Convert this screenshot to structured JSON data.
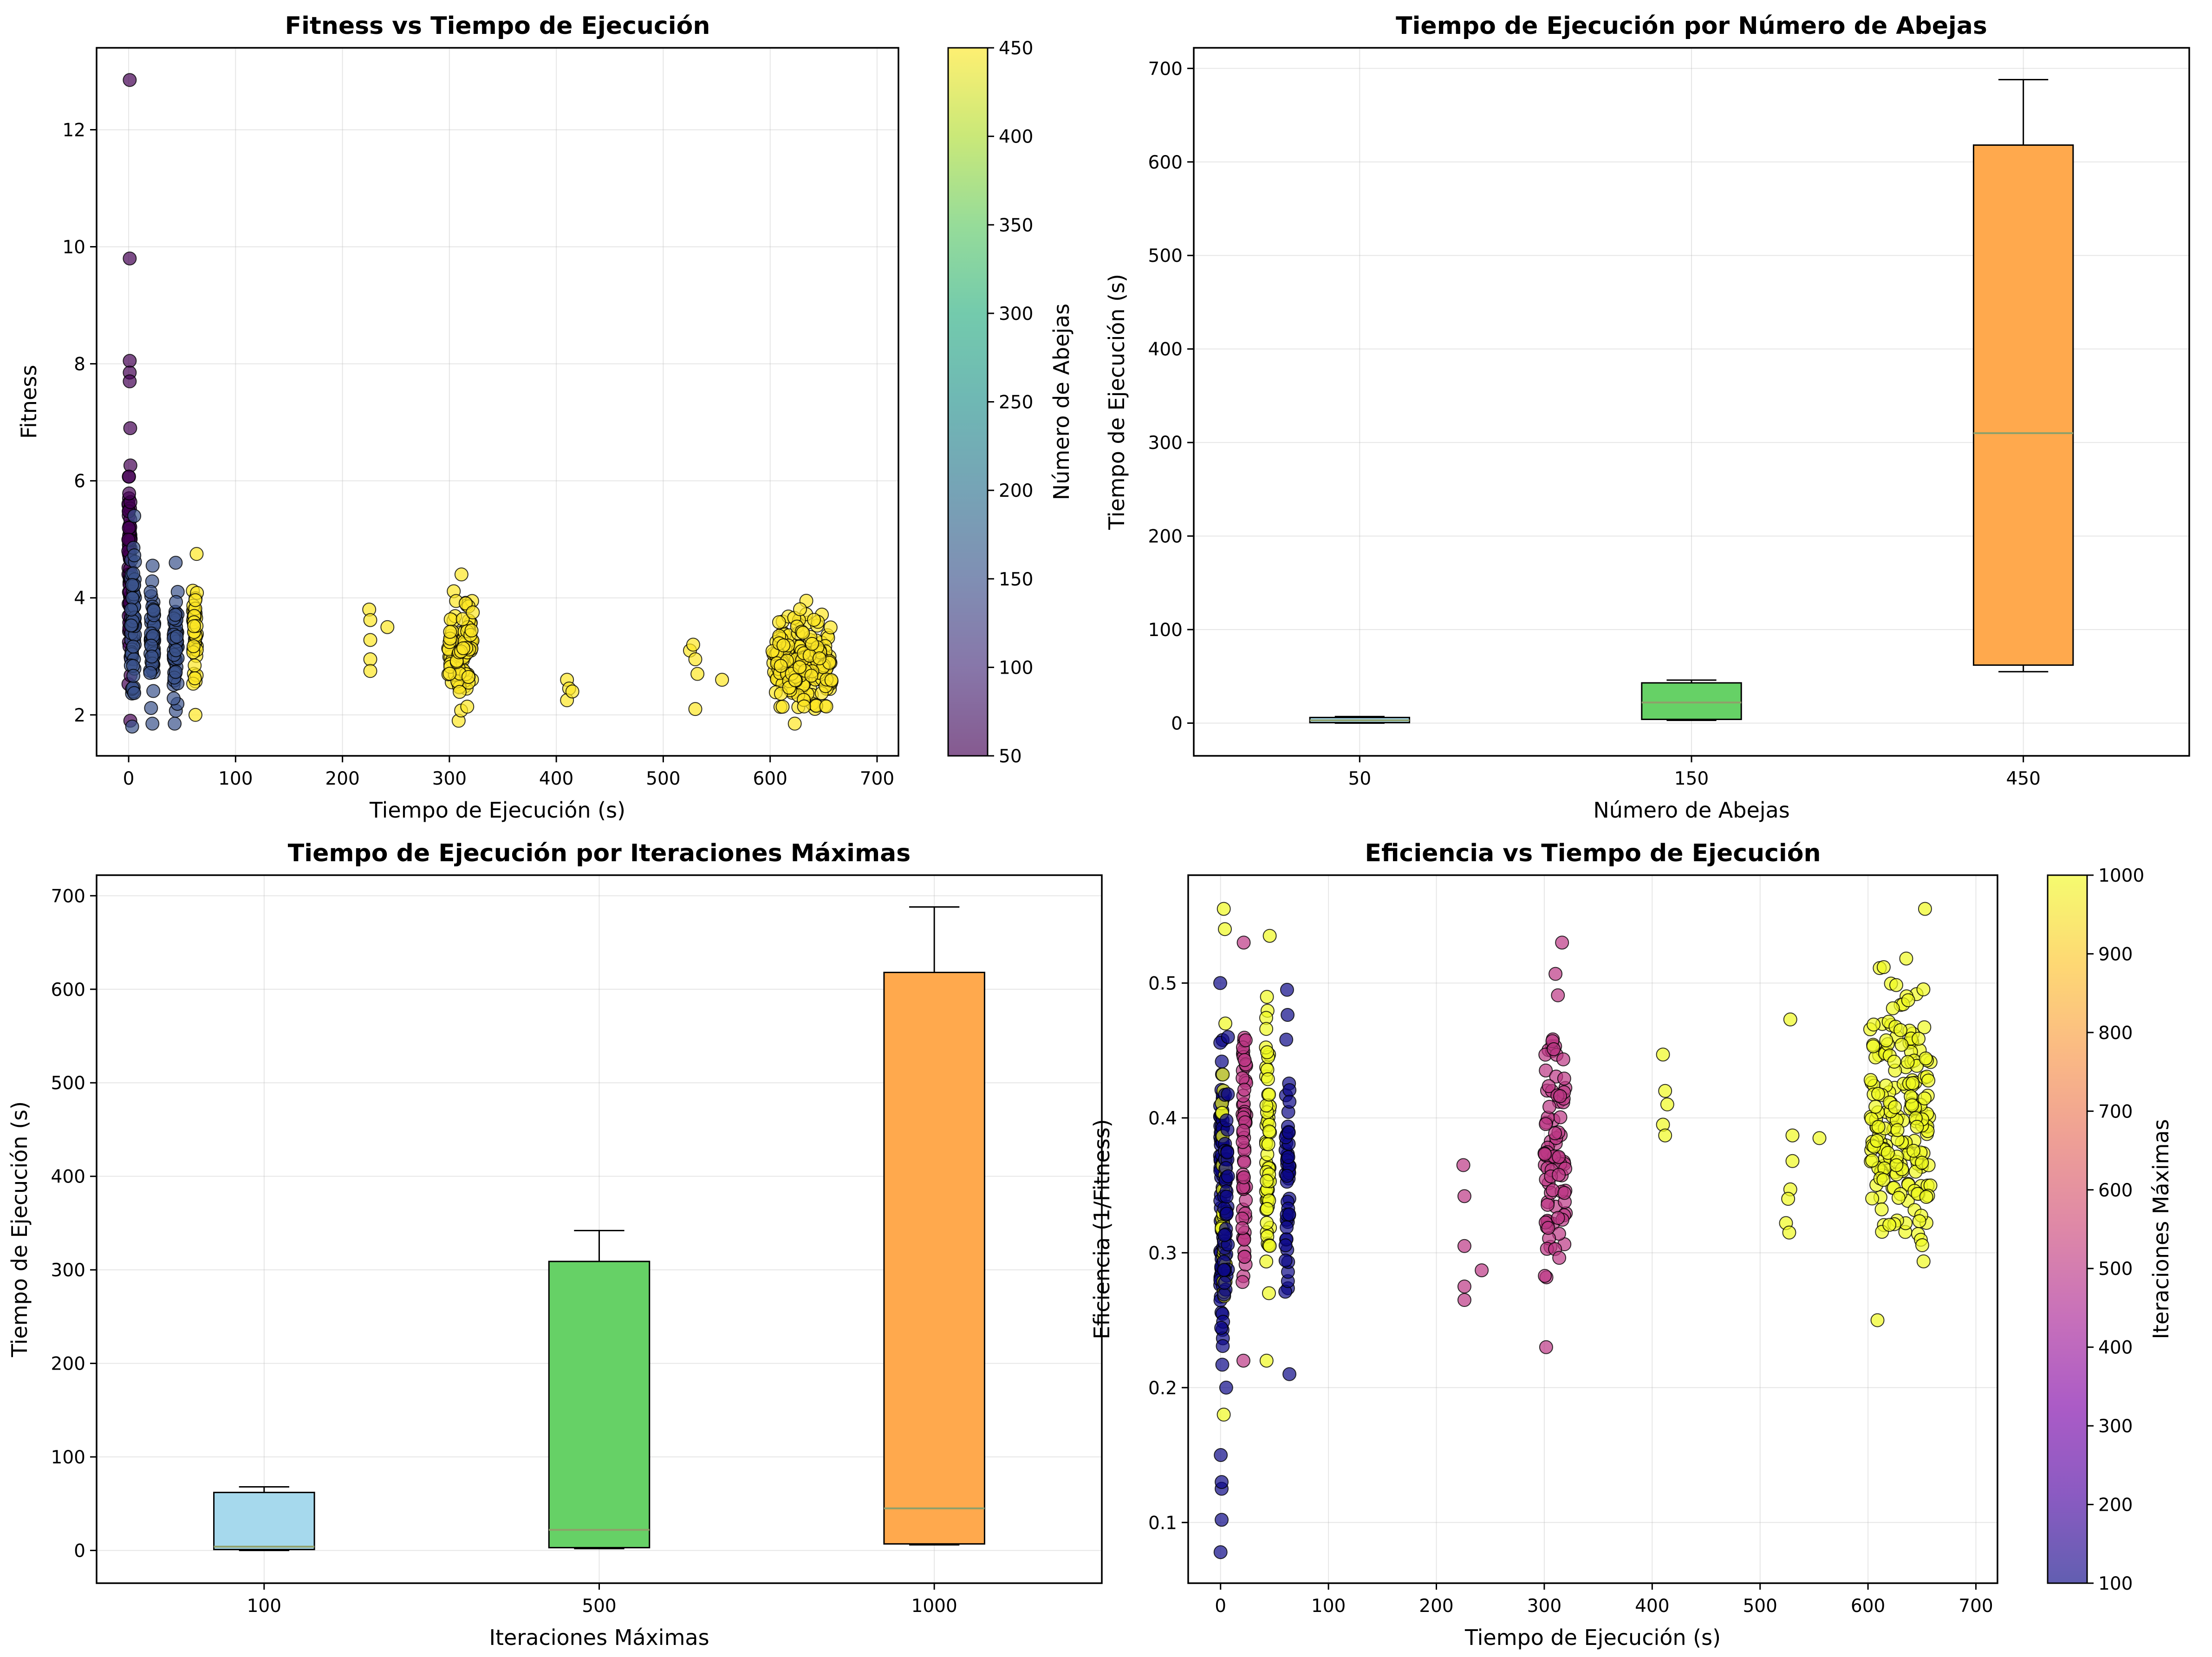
{
  "chart_data": [
    {
      "type": "scatter",
      "title": "Fitness vs Tiempo de Ejecución",
      "xlabel": "Tiempo de Ejecución (s)",
      "ylabel": "Fitness",
      "xlim": [
        -30,
        720
      ],
      "ylim": [
        1.3,
        13.4
      ],
      "xticks": [
        0,
        100,
        200,
        300,
        400,
        500,
        600,
        700
      ],
      "yticks": [
        2,
        4,
        6,
        8,
        10,
        12
      ],
      "grid": true,
      "colorbar": {
        "label": "Número de Abejas",
        "min": 50,
        "max": 450,
        "ticks": [
          50,
          100,
          150,
          200,
          250,
          300,
          350,
          400,
          450
        ],
        "colormap": "viridis"
      },
      "clusters": [
        {
          "x_center": 1,
          "x_spread": 1.5,
          "y_min": 1.9,
          "y_max": 6.9,
          "color_value": 50,
          "count": 70
        },
        {
          "x_center": 4,
          "x_spread": 2,
          "y_min": 1.8,
          "y_max": 5.4,
          "color_value": 150,
          "count": 60
        },
        {
          "x_center": 22,
          "x_spread": 2,
          "y_min": 1.85,
          "y_max": 4.55,
          "color_value": 150,
          "count": 50
        },
        {
          "x_center": 44,
          "x_spread": 2,
          "y_min": 1.85,
          "y_max": 4.6,
          "color_value": 150,
          "count": 50
        },
        {
          "x_center": 62,
          "x_spread": 2,
          "y_min": 2.0,
          "y_max": 4.75,
          "color_value": 450,
          "count": 45
        },
        {
          "x_center": 310,
          "x_spread": 12,
          "y_min": 1.9,
          "y_max": 4.4,
          "color_value": 450,
          "count": 90
        },
        {
          "x_center": 630,
          "x_spread": 28,
          "y_min": 1.85,
          "y_max": 3.95,
          "color_value": 450,
          "count": 200
        }
      ],
      "points": [
        {
          "x": 1,
          "y": 12.85,
          "c": 50
        },
        {
          "x": 1,
          "y": 9.8,
          "c": 50
        },
        {
          "x": 1,
          "y": 8.05,
          "c": 50
        },
        {
          "x": 1,
          "y": 7.85,
          "c": 50
        },
        {
          "x": 1,
          "y": 7.7,
          "c": 50
        },
        {
          "x": 225,
          "y": 3.8,
          "c": 450
        },
        {
          "x": 226,
          "y": 3.62,
          "c": 450
        },
        {
          "x": 242,
          "y": 3.5,
          "c": 450
        },
        {
          "x": 226,
          "y": 2.95,
          "c": 450
        },
        {
          "x": 226,
          "y": 2.75,
          "c": 450
        },
        {
          "x": 226,
          "y": 3.28,
          "c": 450
        },
        {
          "x": 410,
          "y": 2.6,
          "c": 450
        },
        {
          "x": 412,
          "y": 2.45,
          "c": 450
        },
        {
          "x": 410,
          "y": 2.25,
          "c": 450
        },
        {
          "x": 415,
          "y": 2.4,
          "c": 450
        },
        {
          "x": 525,
          "y": 3.1,
          "c": 450
        },
        {
          "x": 530,
          "y": 2.95,
          "c": 450
        },
        {
          "x": 532,
          "y": 2.7,
          "c": 450
        },
        {
          "x": 530,
          "y": 2.1,
          "c": 450
        },
        {
          "x": 555,
          "y": 2.6,
          "c": 450
        },
        {
          "x": 528,
          "y": 3.2,
          "c": 450
        }
      ]
    },
    {
      "type": "box",
      "title": "Tiempo de Ejecución por Número de Abejas",
      "xlabel": "Número de Abejas",
      "ylabel": "Tiempo de Ejecución (s)",
      "categories": [
        "50",
        "150",
        "450"
      ],
      "ylim": [
        -35,
        722
      ],
      "yticks": [
        0,
        100,
        200,
        300,
        400,
        500,
        600,
        700
      ],
      "grid": true,
      "boxes": [
        {
          "category": "50",
          "whisker_low": 0,
          "q1": 0.5,
          "median": 3,
          "q3": 6,
          "whisker_high": 7,
          "color": "#a6d9ed"
        },
        {
          "category": "150",
          "whisker_low": 3,
          "q1": 4,
          "median": 22,
          "q3": 43,
          "whisker_high": 46,
          "color": "#66d166"
        },
        {
          "category": "450",
          "whisker_low": 55,
          "q1": 62,
          "median": 310,
          "q3": 618,
          "whisker_high": 688,
          "color": "#ffa94d"
        }
      ]
    },
    {
      "type": "box",
      "title": "Tiempo de Ejecución por Iteraciones Máximas",
      "xlabel": "Iteraciones Máximas",
      "ylabel": "Tiempo de Ejecución (s)",
      "categories": [
        "100",
        "500",
        "1000"
      ],
      "ylim": [
        -35,
        722
      ],
      "yticks": [
        0,
        100,
        200,
        300,
        400,
        500,
        600,
        700
      ],
      "grid": true,
      "boxes": [
        {
          "category": "100",
          "whisker_low": 0,
          "q1": 1,
          "median": 4,
          "q3": 62,
          "whisker_high": 68,
          "color": "#a6d9ed"
        },
        {
          "category": "500",
          "whisker_low": 2,
          "q1": 3,
          "median": 22,
          "q3": 309,
          "whisker_high": 342,
          "color": "#66d166"
        },
        {
          "category": "1000",
          "whisker_low": 6,
          "q1": 7,
          "median": 45,
          "q3": 618,
          "whisker_high": 688,
          "color": "#ffa94d"
        }
      ]
    },
    {
      "type": "scatter",
      "title": "Eficiencia vs Tiempo de Ejecución",
      "xlabel": "Tiempo de Ejecución (s)",
      "ylabel": "Eficiencia (1/Fitness)",
      "xlim": [
        -30,
        720
      ],
      "ylim": [
        0.055,
        0.58
      ],
      "xticks": [
        0,
        100,
        200,
        300,
        400,
        500,
        600,
        700
      ],
      "yticks": [
        0.1,
        0.2,
        0.3,
        0.4,
        0.5
      ],
      "grid": true,
      "colorbar": {
        "label": "Iteraciones Máximas",
        "min": 100,
        "max": 1000,
        "ticks": [
          100,
          200,
          300,
          400,
          500,
          600,
          700,
          800,
          900,
          1000
        ],
        "colormap": "plasma"
      },
      "clusters": [
        {
          "x_center": 1,
          "x_spread": 1.5,
          "y_min": 0.15,
          "y_max": 0.5,
          "color_value": 100,
          "count": 80
        },
        {
          "x_center": 3,
          "x_spread": 2,
          "y_min": 0.18,
          "y_max": 0.47,
          "color_value": 1000,
          "count": 40
        },
        {
          "x_center": 5,
          "x_spread": 2,
          "y_min": 0.2,
          "y_max": 0.46,
          "color_value": 100,
          "count": 40
        },
        {
          "x_center": 22,
          "x_spread": 2,
          "y_min": 0.22,
          "y_max": 0.53,
          "color_value": 500,
          "count": 60
        },
        {
          "x_center": 44,
          "x_spread": 2,
          "y_min": 0.22,
          "y_max": 0.535,
          "color_value": 1000,
          "count": 60
        },
        {
          "x_center": 62,
          "x_spread": 2,
          "y_min": 0.21,
          "y_max": 0.495,
          "color_value": 100,
          "count": 50
        },
        {
          "x_center": 310,
          "x_spread": 10,
          "y_min": 0.23,
          "y_max": 0.53,
          "color_value": 500,
          "count": 90
        },
        {
          "x_center": 630,
          "x_spread": 28,
          "y_min": 0.25,
          "y_max": 0.555,
          "color_value": 1000,
          "count": 200
        }
      ],
      "points": [
        {
          "x": 0,
          "y": 0.078,
          "c": 100
        },
        {
          "x": 1,
          "y": 0.102,
          "c": 100
        },
        {
          "x": 1,
          "y": 0.125,
          "c": 100
        },
        {
          "x": 1,
          "y": 0.13,
          "c": 100
        },
        {
          "x": 3,
          "y": 0.555,
          "c": 1000
        },
        {
          "x": 4,
          "y": 0.54,
          "c": 1000
        },
        {
          "x": 225,
          "y": 0.365,
          "c": 500
        },
        {
          "x": 226,
          "y": 0.342,
          "c": 500
        },
        {
          "x": 226,
          "y": 0.305,
          "c": 500
        },
        {
          "x": 226,
          "y": 0.275,
          "c": 500
        },
        {
          "x": 226,
          "y": 0.265,
          "c": 500
        },
        {
          "x": 242,
          "y": 0.287,
          "c": 500
        },
        {
          "x": 410,
          "y": 0.447,
          "c": 1000
        },
        {
          "x": 412,
          "y": 0.42,
          "c": 1000
        },
        {
          "x": 410,
          "y": 0.395,
          "c": 1000
        },
        {
          "x": 412,
          "y": 0.387,
          "c": 1000
        },
        {
          "x": 414,
          "y": 0.41,
          "c": 1000
        },
        {
          "x": 528,
          "y": 0.473,
          "c": 1000
        },
        {
          "x": 530,
          "y": 0.387,
          "c": 1000
        },
        {
          "x": 530,
          "y": 0.368,
          "c": 1000
        },
        {
          "x": 528,
          "y": 0.347,
          "c": 1000
        },
        {
          "x": 526,
          "y": 0.34,
          "c": 1000
        },
        {
          "x": 524,
          "y": 0.322,
          "c": 1000
        },
        {
          "x": 527,
          "y": 0.315,
          "c": 1000
        },
        {
          "x": 555,
          "y": 0.385,
          "c": 1000
        }
      ]
    }
  ]
}
